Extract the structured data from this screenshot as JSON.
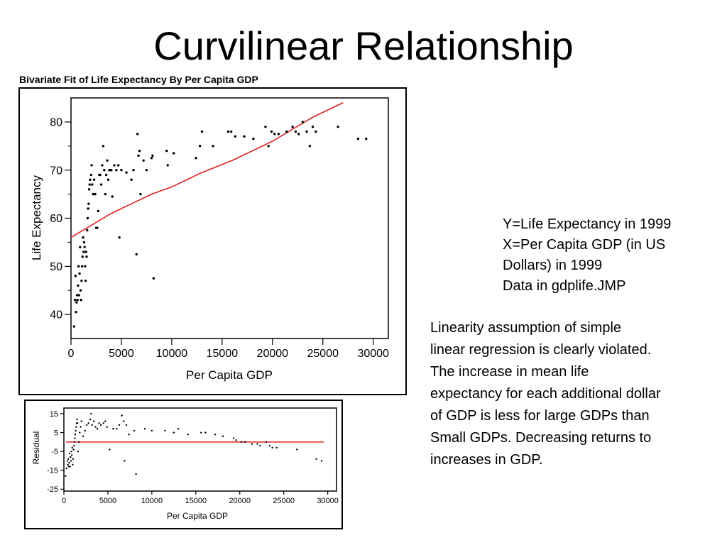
{
  "slide": {
    "title": "Curvilinear Relationship",
    "fit_title": "Bivariate Fit of Life Expectancy By Per Capita GDP",
    "info_lines": [
      "Y=Life Expectancy in 1999",
      "X=Per Capita GDP (in US",
      "Dollars) in 1999",
      "Data in gdplife.JMP"
    ],
    "paragraph_lines": [
      "Linearity assumption of simple",
      "linear regression is clearly violated.",
      "The increase in mean life",
      "expectancy for each additional dollar",
      "of GDP is less for large GDPs than",
      "Small GDPs.  Decreasing returns to",
      "increases in GDP."
    ]
  },
  "chart_data": [
    {
      "type": "scatter",
      "title": "Bivariate Fit of Life Expectancy By Per Capita GDP",
      "xlabel": "Per Capita GDP",
      "ylabel": "Life Expectancy",
      "xlim": [
        0,
        31500
      ],
      "ylim": [
        35,
        85
      ],
      "xticks": [
        0,
        5000,
        10000,
        15000,
        20000,
        25000,
        30000
      ],
      "yticks": [
        40,
        50,
        60,
        70,
        80
      ],
      "grid": false,
      "point_color": "#000000",
      "line_color": "#e02020",
      "fit_line": {
        "x": [
          0,
          4000,
          6000,
          8000,
          10000,
          13000,
          16000,
          20000,
          24000,
          27000
        ],
        "y": [
          56,
          61,
          63,
          65,
          66.5,
          69.5,
          72,
          76,
          81,
          84
        ]
      },
      "points": [
        [
          300,
          37.5
        ],
        [
          400,
          43
        ],
        [
          450,
          48
        ],
        [
          500,
          40.5
        ],
        [
          550,
          42.5
        ],
        [
          600,
          44
        ],
        [
          650,
          43
        ],
        [
          700,
          46
        ],
        [
          750,
          50
        ],
        [
          800,
          44
        ],
        [
          850,
          48.5
        ],
        [
          900,
          54
        ],
        [
          950,
          45
        ],
        [
          1000,
          43
        ],
        [
          1050,
          47
        ],
        [
          1100,
          50
        ],
        [
          1150,
          52
        ],
        [
          1200,
          56
        ],
        [
          1250,
          53
        ],
        [
          1300,
          55
        ],
        [
          1350,
          54
        ],
        [
          1400,
          50
        ],
        [
          1450,
          47
        ],
        [
          1500,
          53
        ],
        [
          1550,
          52
        ],
        [
          1600,
          57.5
        ],
        [
          1650,
          60
        ],
        [
          1700,
          62
        ],
        [
          1750,
          63
        ],
        [
          1800,
          66
        ],
        [
          1850,
          67
        ],
        [
          1900,
          68
        ],
        [
          2000,
          69
        ],
        [
          2050,
          71
        ],
        [
          2100,
          67
        ],
        [
          2200,
          65
        ],
        [
          2300,
          68
        ],
        [
          2400,
          65
        ],
        [
          2500,
          58
        ],
        [
          2600,
          58
        ],
        [
          2700,
          61.5
        ],
        [
          2800,
          69
        ],
        [
          2900,
          69
        ],
        [
          3000,
          67
        ],
        [
          3100,
          71
        ],
        [
          3200,
          75
        ],
        [
          3300,
          70
        ],
        [
          3400,
          65
        ],
        [
          3500,
          69
        ],
        [
          3600,
          72
        ],
        [
          3700,
          68
        ],
        [
          3800,
          70
        ],
        [
          3900,
          70
        ],
        [
          4000,
          70
        ],
        [
          4100,
          64.5
        ],
        [
          4300,
          71
        ],
        [
          4500,
          70
        ],
        [
          4700,
          71
        ],
        [
          4800,
          56
        ],
        [
          5000,
          70
        ],
        [
          5500,
          69.5
        ],
        [
          6000,
          68
        ],
        [
          6200,
          70
        ],
        [
          6500,
          52.5
        ],
        [
          6600,
          77.5
        ],
        [
          6700,
          73
        ],
        [
          6800,
          74
        ],
        [
          6900,
          65
        ],
        [
          7200,
          72
        ],
        [
          7500,
          70
        ],
        [
          8000,
          72.5
        ],
        [
          8100,
          73
        ],
        [
          8200,
          47.5
        ],
        [
          9500,
          74
        ],
        [
          9600,
          71
        ],
        [
          10200,
          73.5
        ],
        [
          12400,
          72.5
        ],
        [
          12800,
          75
        ],
        [
          13000,
          78
        ],
        [
          14100,
          75
        ],
        [
          15600,
          78
        ],
        [
          15900,
          78
        ],
        [
          16300,
          77
        ],
        [
          17200,
          77
        ],
        [
          18100,
          76.5
        ],
        [
          19300,
          79
        ],
        [
          19600,
          75
        ],
        [
          19900,
          78
        ],
        [
          20200,
          77.5
        ],
        [
          20600,
          77.5
        ],
        [
          21400,
          78
        ],
        [
          22000,
          79
        ],
        [
          22300,
          78
        ],
        [
          22600,
          77.5
        ],
        [
          23000,
          80
        ],
        [
          23400,
          78
        ],
        [
          23700,
          75
        ],
        [
          24000,
          79
        ],
        [
          24300,
          78
        ],
        [
          26500,
          79
        ],
        [
          28500,
          76.5
        ],
        [
          29300,
          76.5
        ]
      ]
    },
    {
      "type": "scatter",
      "title": "",
      "xlabel": "Per Capita GDP",
      "ylabel": "Residual",
      "xlim": [
        0,
        31000
      ],
      "ylim": [
        -26,
        18
      ],
      "xticks": [
        0,
        5000,
        10000,
        15000,
        20000,
        25000,
        30000
      ],
      "yticks": [
        15,
        5,
        -5,
        -15,
        -25
      ],
      "grid": false,
      "point_color": "#000000",
      "line_color": "#e02020",
      "zero_line": 0,
      "points": [
        [
          200,
          -18
        ],
        [
          300,
          -14
        ],
        [
          400,
          -10
        ],
        [
          450,
          -12
        ],
        [
          500,
          -9
        ],
        [
          550,
          -13
        ],
        [
          600,
          -11
        ],
        [
          650,
          -6
        ],
        [
          700,
          -13
        ],
        [
          750,
          -8
        ],
        [
          800,
          -10
        ],
        [
          850,
          -5
        ],
        [
          900,
          -7
        ],
        [
          950,
          -3
        ],
        [
          1000,
          -12
        ],
        [
          1050,
          -9
        ],
        [
          1100,
          -4
        ],
        [
          1150,
          -2
        ],
        [
          1200,
          0
        ],
        [
          1250,
          2
        ],
        [
          1300,
          4
        ],
        [
          1350,
          6
        ],
        [
          1400,
          8
        ],
        [
          1450,
          10
        ],
        [
          1500,
          12
        ],
        [
          1550,
          10
        ],
        [
          1600,
          -5
        ],
        [
          1700,
          0
        ],
        [
          1800,
          5
        ],
        [
          1900,
          8
        ],
        [
          2000,
          11
        ],
        [
          2200,
          3
        ],
        [
          2400,
          6
        ],
        [
          2600,
          9
        ],
        [
          2800,
          10
        ],
        [
          3000,
          12
        ],
        [
          3100,
          15
        ],
        [
          3200,
          9
        ],
        [
          3400,
          11
        ],
        [
          3600,
          8
        ],
        [
          3800,
          7
        ],
        [
          4000,
          10
        ],
        [
          4200,
          9
        ],
        [
          4500,
          10
        ],
        [
          4700,
          11
        ],
        [
          4900,
          8
        ],
        [
          5200,
          -4
        ],
        [
          5600,
          7
        ],
        [
          6000,
          7
        ],
        [
          6300,
          9
        ],
        [
          6600,
          14
        ],
        [
          6800,
          11
        ],
        [
          6900,
          -10
        ],
        [
          7100,
          9
        ],
        [
          7400,
          4
        ],
        [
          8000,
          6
        ],
        [
          8200,
          -17
        ],
        [
          9200,
          7
        ],
        [
          10000,
          6
        ],
        [
          11500,
          6
        ],
        [
          12500,
          5
        ],
        [
          13000,
          7
        ],
        [
          14100,
          4
        ],
        [
          15600,
          5
        ],
        [
          16100,
          5
        ],
        [
          17200,
          4
        ],
        [
          18100,
          3
        ],
        [
          19300,
          2
        ],
        [
          19600,
          1
        ],
        [
          20200,
          0
        ],
        [
          20600,
          0
        ],
        [
          21400,
          -1
        ],
        [
          22000,
          -1
        ],
        [
          22300,
          -2
        ],
        [
          23000,
          0
        ],
        [
          23400,
          -2
        ],
        [
          23700,
          -3
        ],
        [
          24200,
          -3
        ],
        [
          26500,
          -4
        ],
        [
          28700,
          -9
        ],
        [
          29300,
          -10
        ]
      ]
    }
  ]
}
